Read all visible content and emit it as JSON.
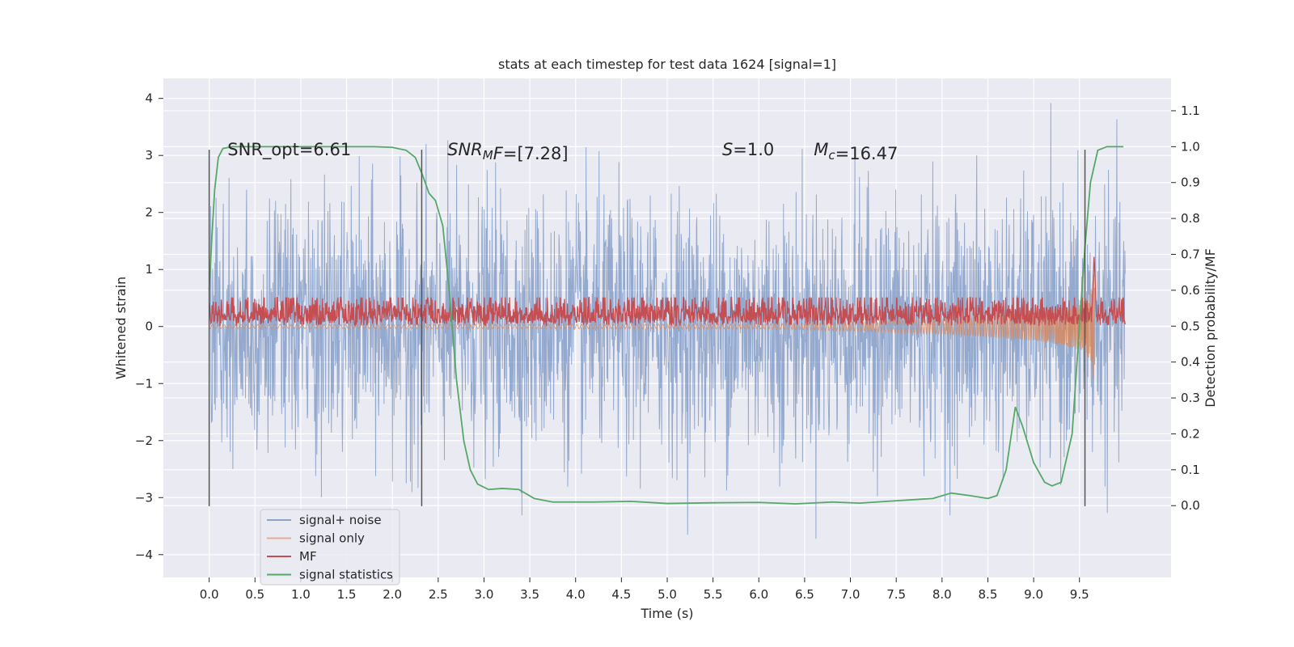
{
  "chart_data": {
    "type": "line",
    "title": "stats at each timestep for test data 1624 [signal=1]",
    "xlabel": "Time (s)",
    "ylabel_left": "Whitened strain",
    "ylabel_right": "Detection probability/MF",
    "xlim": [
      -0.5,
      10.5
    ],
    "ylim_left": [
      -4.4,
      4.35
    ],
    "ylim_right": [
      -0.2,
      1.19
    ],
    "x_ticks": [
      "0.0",
      "0.5",
      "1.0",
      "1.5",
      "2.0",
      "2.5",
      "3.0",
      "3.5",
      "4.0",
      "4.5",
      "5.0",
      "5.5",
      "6.0",
      "6.5",
      "7.0",
      "7.5",
      "8.0",
      "8.5",
      "9.0",
      "9.5"
    ],
    "y_left_ticks": [
      "4",
      "3",
      "2",
      "1",
      "0",
      "−1",
      "−2",
      "−3",
      "−4"
    ],
    "y_right_ticks": [
      "1.1",
      "1.0",
      "0.9",
      "0.8",
      "0.7",
      "0.6",
      "0.5",
      "0.4",
      "0.3",
      "0.2",
      "0.1",
      "0.0"
    ],
    "annotations": [
      {
        "text": "SNR_opt=6.61",
        "x": 0.2,
        "y": 3.1
      },
      {
        "text": "[7.28]",
        "x": 2.6,
        "y": 3.1,
        "prefix": "SNR",
        "sub": "M",
        "suffix": "F="
      },
      {
        "text": "=1.0",
        "x": 5.6,
        "y": 3.1,
        "prefix": "S"
      },
      {
        "text": "=16.47",
        "x": 6.6,
        "y": 3.1,
        "prefix": "M",
        "sub": "c"
      }
    ],
    "vlines": {
      "x": [
        0.0,
        2.32,
        9.56
      ],
      "ymin": -3.15,
      "ymax": 3.1,
      "color": "#555555"
    },
    "grid": true,
    "legend": {
      "placement": "lower-left"
    },
    "colors": {
      "plot_bg": "#eaeaf2",
      "grid": "#ffffff",
      "signal_noise": "#4c72b0",
      "signal_only": "#dd8452",
      "mf": "#c44e52",
      "signal_statistics": "#55a868"
    },
    "series": [
      {
        "name": "signal+ noise",
        "axis": "left",
        "kind": "noise",
        "x_range": [
          0.0,
          10.0
        ],
        "amplitude_sigma": 1.1,
        "peak_range": [
          -4.0,
          3.95
        ]
      },
      {
        "name": "signal only",
        "axis": "left",
        "kind": "chirp",
        "x_range": [
          0.0,
          9.66
        ],
        "max_amplitude": 1.3
      },
      {
        "name": "MF",
        "axis": "right",
        "kind": "noise",
        "x_range": [
          0.0,
          10.0
        ],
        "baseline": 0.5,
        "spread": [
          0.5,
          0.57
        ],
        "peak": {
          "x": 9.66,
          "y": 0.7
        }
      },
      {
        "name": "signal statistics",
        "axis": "right",
        "kind": "line",
        "points": [
          [
            0.0,
            0.6
          ],
          [
            0.03,
            0.75
          ],
          [
            0.06,
            0.88
          ],
          [
            0.1,
            0.97
          ],
          [
            0.15,
            0.995
          ],
          [
            0.25,
            1.0
          ],
          [
            1.0,
            1.0
          ],
          [
            1.8,
            1.0
          ],
          [
            2.0,
            0.998
          ],
          [
            2.15,
            0.99
          ],
          [
            2.25,
            0.97
          ],
          [
            2.33,
            0.92
          ],
          [
            2.4,
            0.87
          ],
          [
            2.47,
            0.85
          ],
          [
            2.55,
            0.78
          ],
          [
            2.62,
            0.6
          ],
          [
            2.7,
            0.35
          ],
          [
            2.78,
            0.18
          ],
          [
            2.85,
            0.1
          ],
          [
            2.93,
            0.06
          ],
          [
            3.05,
            0.045
          ],
          [
            3.2,
            0.048
          ],
          [
            3.38,
            0.045
          ],
          [
            3.55,
            0.02
          ],
          [
            3.75,
            0.01
          ],
          [
            4.2,
            0.01
          ],
          [
            4.6,
            0.012
          ],
          [
            5.0,
            0.006
          ],
          [
            5.5,
            0.008
          ],
          [
            6.0,
            0.009
          ],
          [
            6.4,
            0.005
          ],
          [
            6.8,
            0.01
          ],
          [
            7.1,
            0.007
          ],
          [
            7.4,
            0.012
          ],
          [
            7.9,
            0.02
          ],
          [
            8.1,
            0.035
          ],
          [
            8.3,
            0.028
          ],
          [
            8.5,
            0.02
          ],
          [
            8.6,
            0.028
          ],
          [
            8.7,
            0.1
          ],
          [
            8.8,
            0.275
          ],
          [
            8.88,
            0.22
          ],
          [
            9.0,
            0.12
          ],
          [
            9.12,
            0.065
          ],
          [
            9.2,
            0.055
          ],
          [
            9.3,
            0.065
          ],
          [
            9.42,
            0.2
          ],
          [
            9.5,
            0.5
          ],
          [
            9.56,
            0.72
          ],
          [
            9.62,
            0.9
          ],
          [
            9.7,
            0.99
          ],
          [
            9.8,
            1.0
          ],
          [
            9.98,
            1.0
          ]
        ]
      }
    ]
  }
}
